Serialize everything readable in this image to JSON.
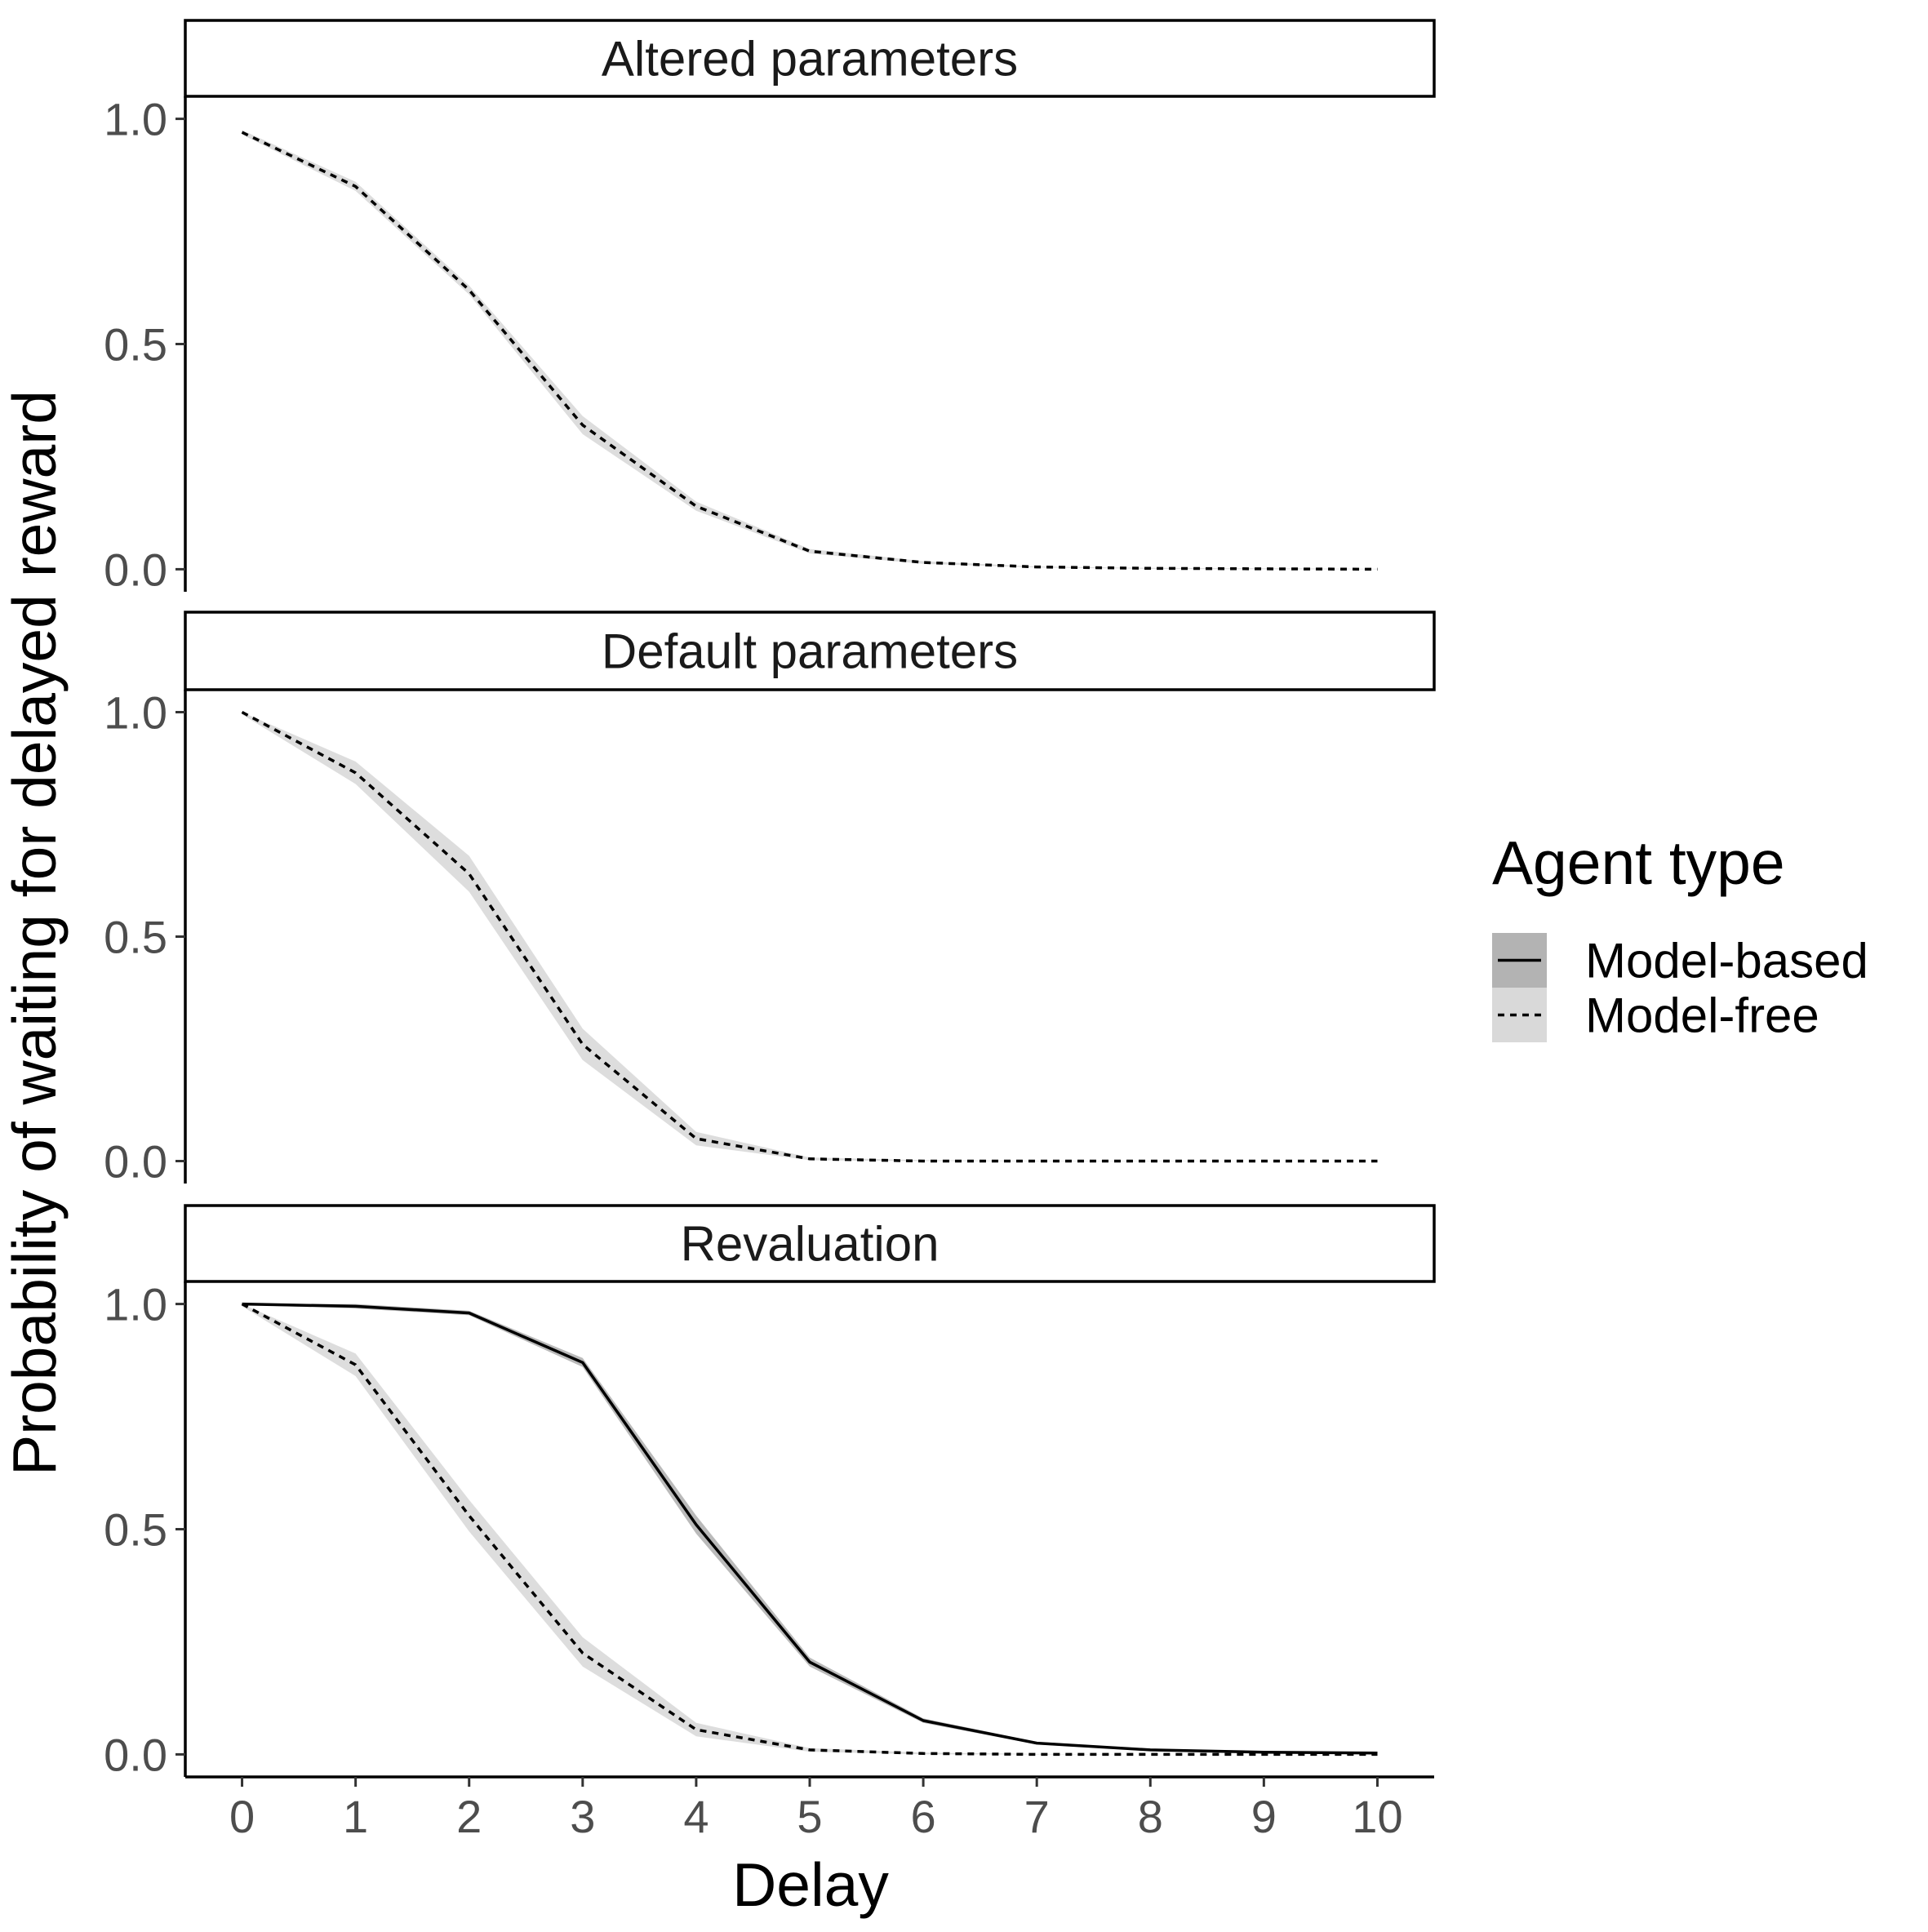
{
  "chart_data": {
    "type": "line",
    "xlabel": "Delay",
    "ylabel": "Probability of waiting for delayed reward",
    "x": [
      0,
      1,
      2,
      3,
      4,
      5,
      6,
      7,
      8,
      9,
      10
    ],
    "xlim": [
      -0.5,
      10.5
    ],
    "ylim": [
      -0.05,
      1.05
    ],
    "x_ticks": [
      "0",
      "1",
      "2",
      "3",
      "4",
      "5",
      "6",
      "7",
      "8",
      "9",
      "10"
    ],
    "y_ticks": [
      "0.0",
      "0.5",
      "1.0"
    ],
    "y_tick_values": [
      0,
      0.5,
      1
    ],
    "grid": false,
    "legend": {
      "title": "Agent type",
      "placement": "right",
      "entries": [
        {
          "label": "Model-based",
          "line": "solid",
          "ribbon_color": "#b3b3b3"
        },
        {
          "label": "Model-free",
          "line": "dotted",
          "ribbon_color": "#d9d9d9"
        }
      ]
    },
    "colors": {
      "line": "#000000",
      "ribbon_model_based": "#b3b3b3",
      "ribbon_model_free": "#d9d9d9"
    },
    "panels": [
      {
        "title": "Altered parameters",
        "series": [
          {
            "name": "Model-free",
            "values": [
              0.97,
              0.85,
              0.62,
              0.32,
              0.14,
              0.04,
              0.015,
              0.005,
              0.002,
              0.001,
              0.0
            ],
            "lower": [
              0.965,
              0.84,
              0.61,
              0.3,
              0.13,
              0.035,
              0.012,
              0.004,
              0.001,
              0.0,
              0.0
            ],
            "upper": [
              0.975,
              0.86,
              0.63,
              0.34,
              0.15,
              0.045,
              0.018,
              0.006,
              0.003,
              0.002,
              0.001
            ]
          }
        ]
      },
      {
        "title": "Default parameters",
        "series": [
          {
            "name": "Model-free",
            "values": [
              1.0,
              0.865,
              0.64,
              0.26,
              0.05,
              0.005,
              0.0,
              0.0,
              0.0,
              0.0,
              0.0
            ],
            "lower": [
              0.995,
              0.84,
              0.6,
              0.225,
              0.035,
              0.002,
              0.0,
              0.0,
              0.0,
              0.0,
              0.0
            ],
            "upper": [
              1.0,
              0.89,
              0.68,
              0.295,
              0.065,
              0.008,
              0.002,
              0.001,
              0.001,
              0.0,
              0.0
            ]
          }
        ]
      },
      {
        "title": "Revaluation",
        "series": [
          {
            "name": "Model-based",
            "values": [
              1.0,
              0.995,
              0.98,
              0.87,
              0.51,
              0.205,
              0.075,
              0.025,
              0.01,
              0.005,
              0.003
            ],
            "lower": [
              0.998,
              0.99,
              0.975,
              0.86,
              0.49,
              0.195,
              0.07,
              0.022,
              0.008,
              0.004,
              0.002
            ],
            "upper": [
              1.0,
              1.0,
              0.985,
              0.88,
              0.53,
              0.215,
              0.08,
              0.028,
              0.012,
              0.006,
              0.004
            ]
          },
          {
            "name": "Model-free",
            "values": [
              1.0,
              0.865,
              0.53,
              0.225,
              0.055,
              0.01,
              0.002,
              0.0,
              0.0,
              0.0,
              0.0
            ],
            "lower": [
              0.995,
              0.84,
              0.495,
              0.195,
              0.04,
              0.006,
              0.0,
              0.0,
              0.0,
              0.0,
              0.0
            ],
            "upper": [
              1.0,
              0.89,
              0.565,
              0.26,
              0.07,
              0.014,
              0.004,
              0.001,
              0.0,
              0.0,
              0.0
            ]
          }
        ]
      }
    ]
  }
}
